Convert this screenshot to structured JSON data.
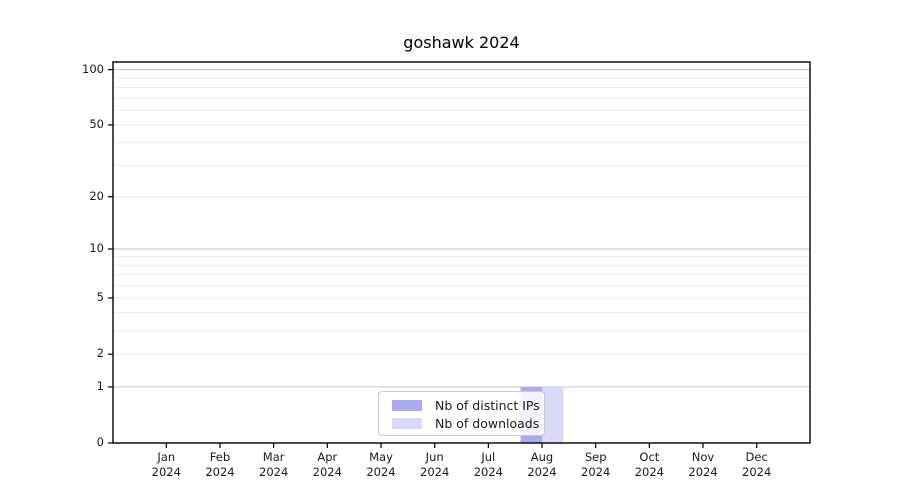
{
  "chart_data": {
    "type": "bar",
    "title": "goshawk 2024",
    "categories": [
      "Jan 2024",
      "Feb 2024",
      "Mar 2024",
      "Apr 2024",
      "May 2024",
      "Jun 2024",
      "Jul 2024",
      "Aug 2024",
      "Sep 2024",
      "Oct 2024",
      "Nov 2024",
      "Dec 2024"
    ],
    "series": [
      {
        "name": "Nb of distinct IPs",
        "color": "#aaaaee",
        "values": [
          0,
          0,
          0,
          0,
          0,
          0,
          0,
          1,
          0,
          0,
          0,
          0
        ]
      },
      {
        "name": "Nb of downloads",
        "color": "#d8d8f7",
        "values": [
          0,
          0,
          0,
          0,
          0,
          0,
          0,
          1,
          0,
          0,
          0,
          0
        ]
      }
    ],
    "yscale": "log1p",
    "ylim": [
      0,
      110
    ],
    "yticks": [
      0,
      1,
      2,
      5,
      10,
      20,
      50,
      100
    ],
    "grid": {
      "orientation": "horizontal",
      "major_values": [
        1,
        10,
        100
      ],
      "minor_values": [
        2,
        3,
        4,
        5,
        6,
        7,
        8,
        9,
        20,
        30,
        40,
        50,
        60,
        70,
        80,
        90
      ],
      "major_color": "#cccccc",
      "minor_color": "#ebebeb"
    },
    "legend": {
      "position": "lower center"
    },
    "colors": {
      "axis_spine": "#000000",
      "tick_text": "#1a1a1a",
      "background": "#ffffff"
    }
  }
}
